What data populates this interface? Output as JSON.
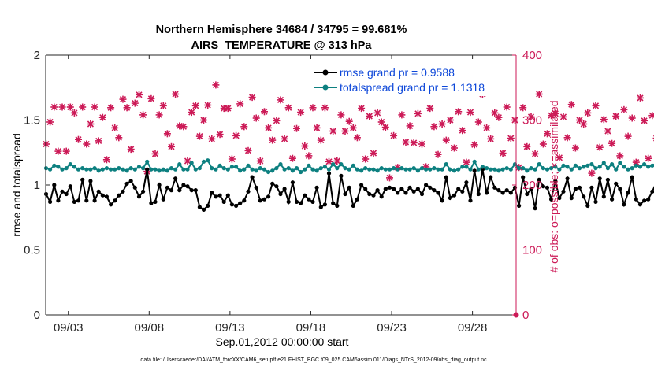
{
  "chart_data": {
    "type": "line",
    "title": "Northern Hemisphere 34684 / 34795 = 99.681%",
    "subtitle": "AIRS_TEMPERATURE @ 313 hPa",
    "xlabel": "Sep.01,2012 00:00:00 start",
    "ylabel": "rmse and totalspread",
    "y2label": "# of obs: o=possible; ×=assimilated",
    "xlim": [
      1.6,
      30.7
    ],
    "ylim": [
      0,
      2
    ],
    "y2lim": [
      0,
      400
    ],
    "x_ticks": [
      3,
      8,
      13,
      18,
      23,
      28
    ],
    "x_tick_labels": [
      "09/03",
      "09/08",
      "09/13",
      "09/18",
      "09/23",
      "09/28"
    ],
    "y_ticks": [
      0,
      0.5,
      1,
      1.5,
      2
    ],
    "y_tick_labels": [
      "0",
      "0.5",
      "1",
      "1.5",
      "2"
    ],
    "y2_ticks": [
      0,
      100,
      200,
      300,
      400
    ],
    "y2_tick_labels": [
      "0",
      "100",
      "200",
      "300",
      "400"
    ],
    "x_start": 1.625,
    "x_step": 0.25,
    "series": [
      {
        "name": "rmse grand pr = 0.9588",
        "color": "#000000",
        "axis": "left",
        "values": [
          0.93,
          0.87,
          1.0,
          0.88,
          0.95,
          0.93,
          0.99,
          0.87,
          0.88,
          1.04,
          0.88,
          1.03,
          0.88,
          0.95,
          0.92,
          0.91,
          0.85,
          0.88,
          0.92,
          0.95,
          1.01,
          1.03,
          0.98,
          0.91,
          0.95,
          1.12,
          0.86,
          0.87,
          1.0,
          0.89,
          0.98,
          0.96,
          1.05,
          0.96,
          1.0,
          0.99,
          0.96,
          0.96,
          0.83,
          0.81,
          0.84,
          0.94,
          0.91,
          0.92,
          0.87,
          0.92,
          0.85,
          0.84,
          0.86,
          0.88,
          0.95,
          1.06,
          0.98,
          0.88,
          0.89,
          0.91,
          1.01,
          0.99,
          0.93,
          0.97,
          0.87,
          1.02,
          0.87,
          0.86,
          0.92,
          0.89,
          0.87,
          0.98,
          0.83,
          0.85,
          1.09,
          0.86,
          0.84,
          1.07,
          0.93,
          0.98,
          0.84,
          0.89,
          1.0,
          0.97,
          0.93,
          0.92,
          0.96,
          0.91,
          0.97,
          0.98,
          0.97,
          0.94,
          0.97,
          0.94,
          0.98,
          0.95,
          0.97,
          0.93,
          1.0,
          0.98,
          0.96,
          0.94,
          0.88,
          1.06,
          0.9,
          0.92,
          0.97,
          0.95,
          1.02,
          0.88,
          1.11,
          0.93,
          1.12,
          0.94,
          1.06,
          0.98,
          0.96,
          0.94,
          0.96,
          0.94,
          0.98,
          0.84,
          1.06,
          0.93,
          0.97,
          0.82,
          1.04,
          0.99,
          0.98,
          0.89,
          1.03,
          0.9,
          0.95,
          1.05,
          0.9,
          0.97,
          0.98,
          0.91,
          0.84,
          0.98,
          0.87,
          1.05,
          0.91,
          1.04,
          0.89,
          1.01,
          0.97,
          0.85,
          0.94,
          1.06,
          0.89,
          0.85,
          0.88,
          0.89,
          0.95,
          1.02,
          0.95,
          0.99,
          0.97,
          0.99,
          0.95,
          0.91,
          0.97,
          0.86,
          1.08,
          0.84,
          0.82,
          0.93,
          0.97,
          1.07,
          0.95,
          0.91,
          0.95,
          0.98,
          0.92,
          1.0,
          0.94,
          1.02,
          0.97,
          1.0,
          0.9,
          0.96,
          0.98,
          0.95,
          0.99,
          0.93,
          0.9,
          0.96,
          0.93,
          1.02,
          0.94,
          0.99,
          0.92,
          1.0,
          0.98,
          0.95,
          0.98,
          0.93,
          0.88,
          0.97,
          0.93,
          1.02,
          0.96,
          1.02,
          0.94,
          0.92,
          0.96,
          0.93,
          0.96,
          0.95,
          1.0,
          0.93,
          0.97,
          0.93,
          0.92,
          0.96,
          0.94,
          0.98,
          0.93,
          0.96,
          1.0,
          0.94,
          0.97,
          0.92,
          0.98,
          0.93,
          0.95,
          0.96,
          1.02,
          0.94,
          0.99,
          0.96,
          0.93,
          1.0,
          0.94,
          0.95,
          0.98,
          1.03,
          0.93,
          1.0,
          0.95,
          0.99,
          0.96,
          0.95,
          0.97,
          0.93,
          0.94,
          0.98,
          0.97,
          1.0,
          0.94,
          0.95,
          0.93,
          0.95,
          0.97,
          0.96,
          0.94,
          0.97,
          0.93,
          0.95,
          0.98,
          0.96,
          0.99,
          0.94,
          0.97,
          0.95,
          0.96,
          0.94,
          0.98,
          0.93,
          0.97,
          0.96,
          0.95,
          1.0,
          0.96,
          0.97,
          0.94,
          0.92,
          0.99,
          0.95,
          0.96,
          0.98,
          0.97,
          1.01,
          0.94,
          0.96,
          0.93,
          0.98,
          0.95,
          0.99,
          0.97,
          0.95,
          0.96,
          0.95,
          1.0,
          0.94,
          0.96,
          0.93,
          0.97,
          0.95,
          0.98,
          0.94,
          0.96,
          0.99,
          0.96,
          0.95,
          0.97,
          0.94,
          0.98,
          0.96,
          0.93,
          0.97,
          0.95,
          0.99,
          0.94,
          1.0,
          0.96,
          0.97,
          0.95,
          0.94,
          0.98,
          0.96,
          0.93,
          0.97
        ]
      },
      {
        "name": "totalspread grand pr = 1.1318",
        "color": "#0d8080",
        "axis": "left",
        "values": [
          1.13,
          1.12,
          1.15,
          1.14,
          1.12,
          1.13,
          1.16,
          1.14,
          1.12,
          1.13,
          1.12,
          1.12,
          1.13,
          1.11,
          1.12,
          1.13,
          1.12,
          1.12,
          1.13,
          1.12,
          1.11,
          1.13,
          1.12,
          1.14,
          1.13,
          1.18,
          1.12,
          1.12,
          1.11,
          1.12,
          1.11,
          1.13,
          1.12,
          1.16,
          1.12,
          1.12,
          1.17,
          1.12,
          1.13,
          1.18,
          1.19,
          1.13,
          1.12,
          1.15,
          1.13,
          1.12,
          1.14,
          1.14,
          1.11,
          1.12,
          1.15,
          1.12,
          1.11,
          1.13,
          1.12,
          1.1,
          1.11,
          1.13,
          1.16,
          1.12,
          1.13,
          1.11,
          1.13,
          1.1,
          1.12,
          1.15,
          1.12,
          1.11,
          1.13,
          1.14,
          1.12,
          1.16,
          1.13,
          1.16,
          1.13,
          1.12,
          1.15,
          1.12,
          1.11,
          1.13,
          1.12,
          1.12,
          1.11,
          1.13,
          1.12,
          1.12,
          1.13,
          1.12,
          1.13,
          1.12,
          1.12,
          1.13,
          1.11,
          1.13,
          1.12,
          1.12,
          1.13,
          1.12,
          1.12,
          1.16,
          1.12,
          1.11,
          1.12,
          1.14,
          1.14,
          1.12,
          1.18,
          1.12,
          1.14,
          1.13,
          1.12,
          1.12,
          1.11,
          1.12,
          1.13,
          1.12,
          1.16,
          1.13,
          1.13,
          1.11,
          1.13,
          1.12,
          1.16,
          1.13,
          1.12,
          1.13,
          1.14,
          1.12,
          1.15,
          1.14,
          1.12,
          1.15,
          1.13,
          1.14,
          1.15,
          1.16,
          1.13,
          1.14,
          1.17,
          1.13,
          1.16,
          1.12,
          1.17,
          1.14,
          1.12,
          1.13,
          1.15,
          1.14,
          1.16,
          1.14,
          1.15,
          1.17,
          1.13,
          1.16,
          1.19,
          1.14,
          1.13,
          1.18,
          1.16,
          1.14,
          1.13,
          1.18,
          1.15,
          1.17,
          1.14,
          1.15,
          1.13,
          1.17,
          1.16,
          1.18,
          1.15,
          1.14,
          1.19,
          1.14,
          1.16,
          1.14,
          1.17,
          1.16,
          1.15,
          1.17,
          1.14,
          1.16,
          1.15,
          1.17,
          1.16,
          1.14,
          1.17,
          1.15,
          1.16,
          1.14,
          1.17,
          1.18,
          1.16,
          1.15,
          1.17,
          1.16,
          1.15,
          1.18,
          1.14,
          1.17,
          1.16,
          1.15,
          1.17,
          1.14,
          1.16,
          1.15,
          1.18,
          1.17,
          1.15,
          1.16,
          1.14,
          1.17,
          1.16,
          1.15,
          1.18,
          1.15,
          1.17,
          1.16,
          1.14,
          1.15,
          1.17,
          1.16,
          1.18,
          1.14,
          1.16,
          1.17,
          1.15,
          1.16,
          1.17,
          1.14,
          1.16,
          1.18,
          1.15,
          1.17,
          1.16,
          1.15,
          1.17,
          1.16,
          1.15,
          1.18,
          1.19,
          1.15,
          1.17,
          1.16,
          1.15,
          1.17,
          1.14,
          1.16,
          1.15,
          1.17,
          1.16,
          1.15,
          1.18,
          1.16,
          1.17,
          1.15,
          1.16,
          1.14,
          1.17,
          1.16,
          1.15,
          1.18,
          1.16,
          1.17,
          1.15,
          1.16,
          1.17,
          1.15,
          1.18,
          1.16,
          1.17,
          1.15,
          1.16,
          1.17,
          1.15,
          1.18,
          1.16,
          1.17,
          1.15,
          1.16,
          1.14,
          1.17,
          1.16,
          1.15,
          1.18,
          1.16,
          1.17,
          1.15,
          1.16,
          1.17,
          1.15,
          1.18,
          1.16,
          1.19,
          1.17,
          1.15,
          1.16,
          1.17,
          1.15,
          1.18,
          1.16,
          1.17,
          1.15,
          1.16,
          1.14,
          1.17,
          1.16,
          1.15,
          1.18,
          1.19
        ]
      }
    ],
    "obs_series": {
      "name": "# of obs",
      "color": "#cc1a57",
      "axis": "right",
      "possible_marker": "o",
      "assimilated_marker": "×",
      "values": [
        263,
        297,
        320,
        252,
        320,
        252,
        320,
        311,
        270,
        320,
        263,
        294,
        320,
        268,
        304,
        239,
        319,
        288,
        273,
        332,
        319,
        255,
        326,
        339,
        308,
        221,
        333,
        248,
        308,
        322,
        279,
        259,
        340,
        291,
        290,
        237,
        312,
        322,
        275,
        300,
        323,
        271,
        354,
        278,
        318,
        318,
        240,
        276,
        325,
        290,
        253,
        335,
        303,
        237,
        313,
        288,
        269,
        299,
        331,
        271,
        319,
        241,
        287,
        312,
        260,
        245,
        319,
        288,
        269,
        319,
        236,
        283,
        237,
        308,
        283,
        298,
        288,
        273,
        318,
        240,
        306,
        249,
        311,
        297,
        289,
        211,
        276,
        227,
        308,
        266,
        291,
        265,
        310,
        263,
        228,
        318,
        290,
        247,
        294,
        269,
        300,
        257,
        313,
        284,
        235,
        312,
        262,
        297,
        340,
        288,
        271,
        311,
        304,
        249,
        320,
        272,
        300,
        227,
        319,
        259,
        305,
        248,
        340,
        263,
        279,
        307,
        310,
        242,
        305,
        273,
        324,
        257,
        300,
        294,
        311,
        218,
        322,
        258,
        301,
        283,
        264,
        306,
        245,
        316,
        275,
        303,
        235,
        334,
        299,
        241,
        307,
        272,
        324,
        236,
        306,
        256,
        302,
        293,
        321,
        230,
        312,
        271,
        295,
        214,
        300,
        263,
        327,
        245,
        296,
        322,
        306,
        243,
        313,
        272,
        304,
        240,
        311,
        257,
        328,
        300,
        248,
        312,
        275,
        303,
        231,
        311,
        258,
        326,
        284,
        302,
        238,
        314,
        263,
        299,
        251,
        322,
        274,
        305,
        236,
        310,
        247,
        331,
        279,
        308,
        244,
        300,
        260,
        318,
        285,
        296,
        240,
        313,
        268,
        301,
        225,
        317,
        253,
        306,
        282,
        299,
        244,
        311,
        270,
        325,
        257,
        303,
        239,
        312,
        278,
        297,
        250,
        321,
        264,
        305,
        236,
        310,
        254,
        300,
        285,
        297,
        242,
        315,
        268,
        304,
        229,
        319,
        258,
        306,
        276,
        301,
        249,
        311,
        270,
        302,
        240,
        307,
        262,
        317,
        287,
        295,
        246,
        310,
        273,
        299,
        234,
        316,
        259,
        307,
        281,
        302,
        250,
        314,
        266,
        300,
        241,
        312,
        277,
        305,
        257,
        299,
        244,
        317,
        270,
        303,
        233,
        309,
        263,
        311,
        282,
        298,
        247,
        313,
        269,
        301,
        238,
        314,
        257,
        308,
        286,
        296,
        243,
        310,
        272,
        301,
        234,
        315,
        260,
        307,
        280,
        300,
        251,
        312,
        268,
        302
      ],
      "extra_point": {
        "x": 30.7,
        "y": 0
      }
    },
    "footer": "data file: /Users/raeder/DAI/ATM_forcXX/CAM6_setup/f.e21.FHIST_BGC.f09_025.CAM6assim.011/Diags_NTrS_2012-09/obs_diag_output.nc"
  }
}
